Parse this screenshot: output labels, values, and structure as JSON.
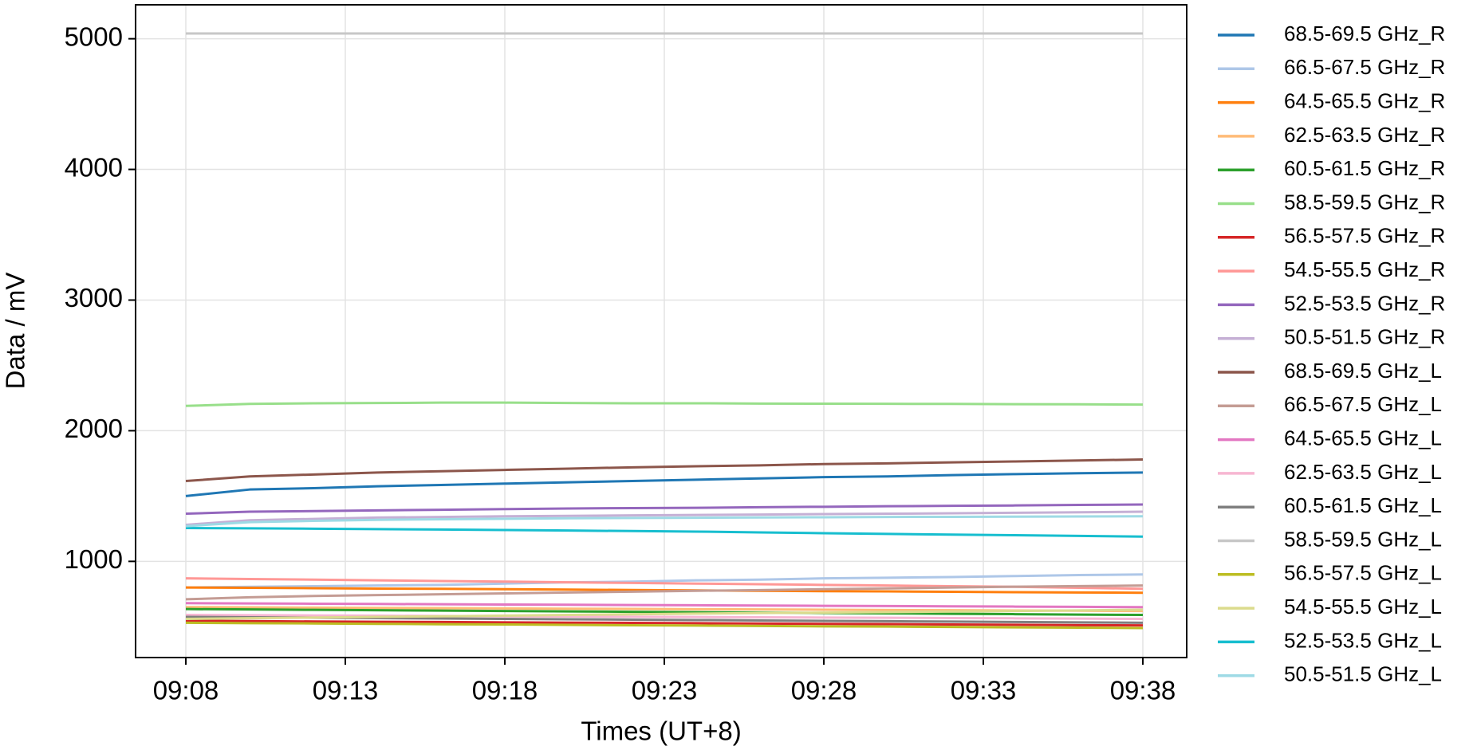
{
  "chart_data": {
    "type": "line",
    "xlabel": "Times (UT+8)",
    "ylabel": "Data / mV",
    "x": [
      "09:08",
      "09:10",
      "09:12",
      "09:14",
      "09:16",
      "09:18",
      "09:20",
      "09:22",
      "09:24",
      "09:26",
      "09:28",
      "09:30",
      "09:32",
      "09:34",
      "09:36",
      "09:38"
    ],
    "xlim": [
      "09:08",
      "09:38"
    ],
    "xticks": [
      "09:08",
      "09:13",
      "09:18",
      "09:23",
      "09:28",
      "09:33",
      "09:38"
    ],
    "ylim": [
      264,
      5260
    ],
    "yticks": [
      1000,
      2000,
      3000,
      4000,
      5000
    ],
    "grid": true,
    "legend": "outside-right",
    "series": [
      {
        "name": "68.5-69.5 GHz_R",
        "color": "#1f77b4",
        "values": [
          1500,
          1550,
          1560,
          1575,
          1585,
          1595,
          1605,
          1615,
          1625,
          1635,
          1645,
          1650,
          1660,
          1668,
          1675,
          1680
        ]
      },
      {
        "name": "66.5-67.5 GHz_R",
        "color": "#aec7e8",
        "values": [
          800,
          805,
          810,
          815,
          820,
          830,
          840,
          845,
          855,
          860,
          870,
          875,
          880,
          888,
          895,
          900
        ]
      },
      {
        "name": "64.5-65.5 GHz_R",
        "color": "#ff7f0e",
        "values": [
          800,
          798,
          795,
          792,
          790,
          787,
          784,
          781,
          778,
          775,
          772,
          770,
          767,
          764,
          762,
          760
        ]
      },
      {
        "name": "62.5-63.5 GHz_R",
        "color": "#ffbb78",
        "values": [
          650,
          648,
          646,
          644,
          642,
          640,
          638,
          636,
          634,
          632,
          630,
          628,
          626,
          624,
          622,
          620
        ]
      },
      {
        "name": "60.5-61.5 GHz_R",
        "color": "#2ca02c",
        "values": [
          635,
          632,
          629,
          626,
          623,
          620,
          617,
          614,
          611,
          608,
          605,
          602,
          599,
          596,
          593,
          590
        ]
      },
      {
        "name": "58.5-59.5 GHz_R",
        "color": "#98df8a",
        "values": [
          2190,
          2205,
          2210,
          2212,
          2215,
          2215,
          2212,
          2210,
          2210,
          2208,
          2207,
          2206,
          2205,
          2203,
          2202,
          2200
        ]
      },
      {
        "name": "56.5-57.5 GHz_R",
        "color": "#d62728",
        "values": [
          545,
          543,
          540,
          538,
          536,
          533,
          531,
          529,
          527,
          524,
          522,
          520,
          517,
          515,
          512,
          510
        ]
      },
      {
        "name": "54.5-55.5 GHz_R",
        "color": "#ff9896",
        "values": [
          870,
          865,
          860,
          855,
          850,
          845,
          840,
          835,
          830,
          825,
          820,
          815,
          810,
          805,
          798,
          790
        ]
      },
      {
        "name": "52.5-53.5 GHz_R",
        "color": "#9467bd",
        "values": [
          1365,
          1380,
          1385,
          1390,
          1395,
          1400,
          1405,
          1408,
          1410,
          1415,
          1418,
          1422,
          1425,
          1428,
          1432,
          1435
        ]
      },
      {
        "name": "50.5-51.5 GHz_R",
        "color": "#c5b0d5",
        "values": [
          1280,
          1315,
          1325,
          1335,
          1340,
          1345,
          1348,
          1352,
          1355,
          1358,
          1362,
          1365,
          1368,
          1372,
          1376,
          1380
        ]
      },
      {
        "name": "68.5-69.5 GHz_L",
        "color": "#8c564b",
        "values": [
          1615,
          1650,
          1665,
          1680,
          1690,
          1700,
          1710,
          1720,
          1728,
          1735,
          1745,
          1750,
          1758,
          1765,
          1772,
          1780
        ]
      },
      {
        "name": "66.5-67.5 GHz_L",
        "color": "#c49c94",
        "values": [
          710,
          725,
          735,
          742,
          748,
          755,
          762,
          768,
          775,
          780,
          787,
          793,
          800,
          806,
          811,
          815
        ]
      },
      {
        "name": "64.5-65.5 GHz_L",
        "color": "#e377c2",
        "values": [
          680,
          678,
          676,
          674,
          672,
          670,
          668,
          666,
          664,
          662,
          660,
          658,
          656,
          654,
          652,
          650
        ]
      },
      {
        "name": "62.5-63.5 GHz_L",
        "color": "#f7b6d2",
        "values": [
          590,
          588,
          586,
          584,
          582,
          580,
          578,
          576,
          574,
          572,
          570,
          568,
          566,
          564,
          562,
          560
        ]
      },
      {
        "name": "60.5-61.5 GHz_L",
        "color": "#7f7f7f",
        "values": [
          575,
          572,
          569,
          566,
          563,
          560,
          557,
          554,
          551,
          548,
          545,
          542,
          539,
          536,
          533,
          530
        ]
      },
      {
        "name": "58.5-59.5 GHz_L",
        "color": "#c7c7c7",
        "values": [
          5040,
          5040,
          5040,
          5040,
          5040,
          5040,
          5040,
          5040,
          5040,
          5040,
          5040,
          5040,
          5040,
          5040,
          5040,
          5040
        ]
      },
      {
        "name": "56.5-57.5 GHz_L",
        "color": "#bcbd22",
        "values": [
          530,
          527,
          525,
          522,
          519,
          517,
          514,
          511,
          509,
          506,
          503,
          501,
          498,
          495,
          493,
          490
        ]
      },
      {
        "name": "54.5-55.5 GHz_L",
        "color": "#dbdb8d",
        "values": [
          560,
          565,
          570,
          575,
          580,
          585,
          590,
          595,
          600,
          605,
          608,
          612,
          616,
          620,
          625,
          630
        ]
      },
      {
        "name": "52.5-53.5 GHz_L",
        "color": "#17becf",
        "values": [
          1255,
          1253,
          1250,
          1247,
          1244,
          1240,
          1236,
          1232,
          1228,
          1222,
          1216,
          1210,
          1205,
          1200,
          1195,
          1190
        ]
      },
      {
        "name": "50.5-51.5 GHz_L",
        "color": "#9edae5",
        "values": [
          1270,
          1300,
          1310,
          1318,
          1322,
          1326,
          1330,
          1332,
          1334,
          1336,
          1338,
          1340,
          1341,
          1342,
          1344,
          1345
        ]
      }
    ]
  }
}
